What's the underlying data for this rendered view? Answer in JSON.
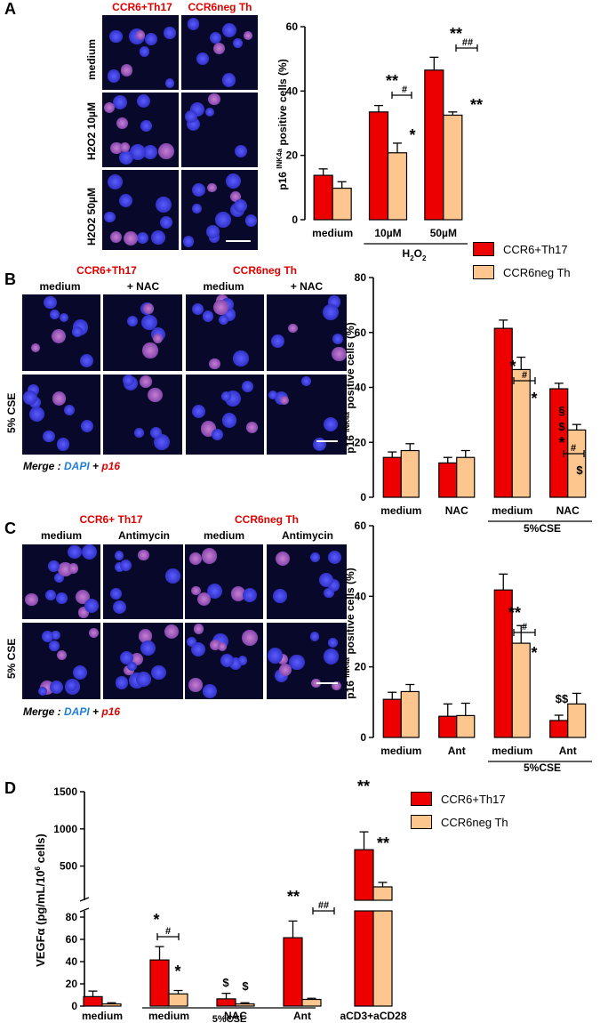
{
  "colors": {
    "red": "#ee0000",
    "tan": "#fcc68e",
    "dark": "#08082a"
  },
  "panels": {
    "A": {
      "letter": "A",
      "col1": "CCR6+Th17",
      "col2": "CCR6neg Th",
      "rows": [
        "medium",
        "H2O2 10µM",
        "H2O2 50µM"
      ]
    },
    "B": {
      "letter": "B",
      "col1": "CCR6+Th17",
      "col2": "CCR6neg Th",
      "sub": [
        "medium",
        "+ NAC",
        "medium",
        "+ NAC"
      ],
      "row": "5% CSE",
      "merge": "Merge : DAPI + p16"
    },
    "C": {
      "letter": "C",
      "col1": "CCR6+ Th17",
      "col2": "CCR6neg Th",
      "sub": [
        "medium",
        "Antimycin",
        "medium",
        "Antimycin"
      ],
      "row": "5% CSE",
      "merge": "Merge : DAPI + p16"
    },
    "D": {
      "letter": "D"
    }
  },
  "legend": {
    "s1": "CCR6+Th17",
    "s2": "CCR6neg Th"
  },
  "chart_data": [
    {
      "id": "A",
      "type": "bar",
      "ylabel": "p16 INK4a positive cells (%)",
      "ylim": [
        0,
        60
      ],
      "yticks": [
        0,
        20,
        40,
        60
      ],
      "categories": [
        "medium",
        "10µM",
        "50µM"
      ],
      "group_label": "H2O2",
      "series": [
        {
          "name": "CCR6+Th17",
          "values": [
            13.8,
            33.5,
            46.5
          ],
          "err": [
            2,
            2,
            4
          ]
        },
        {
          "name": "CCR6neg Th",
          "values": [
            9.8,
            20.8,
            32.5
          ],
          "err": [
            2,
            3,
            1
          ]
        }
      ],
      "annotations": [
        "**",
        "#",
        "*",
        "**",
        "##",
        "**"
      ]
    },
    {
      "id": "B",
      "type": "bar",
      "ylabel": "p16 INK4a positive cells (%)",
      "ylim": [
        0,
        80
      ],
      "yticks": [
        0,
        20,
        40,
        60,
        80
      ],
      "categories": [
        "medium",
        "NAC",
        "medium",
        "NAC"
      ],
      "group_label": "5%CSE",
      "series": [
        {
          "name": "CCR6+Th17",
          "values": [
            14.5,
            12.5,
            61.5,
            39.5
          ],
          "err": [
            2,
            2,
            3,
            2
          ]
        },
        {
          "name": "CCR6neg Th",
          "values": [
            17,
            14.5,
            46.5,
            24.5
          ],
          "err": [
            2.5,
            2.5,
            4.5,
            2
          ]
        }
      ],
      "annotations": [
        "*",
        "#",
        "*",
        "§",
        "$",
        "*",
        "#",
        "$"
      ]
    },
    {
      "id": "C",
      "type": "bar",
      "ylabel": "p16 INK4a positive cells (%)",
      "ylim": [
        0,
        60
      ],
      "yticks": [
        0,
        20,
        40,
        60
      ],
      "categories": [
        "medium",
        "Ant",
        "medium",
        "Ant"
      ],
      "group_label": "5%CSE",
      "series": [
        {
          "name": "CCR6+Th17",
          "values": [
            10.8,
            6,
            41.8,
            4.8
          ],
          "err": [
            2,
            3.5,
            4.5,
            1.5
          ]
        },
        {
          "name": "CCR6neg Th",
          "values": [
            13,
            6.2,
            26.7,
            9.5
          ],
          "err": [
            2,
            3.5,
            5,
            3
          ]
        }
      ],
      "annotations": [
        "**",
        "#",
        "*",
        "$$"
      ]
    },
    {
      "id": "D",
      "type": "bar",
      "ylabel": "VEGFα (pg/mL/10^6 cells)",
      "ylim": [
        0,
        1500
      ],
      "axis_break": [
        80,
        100
      ],
      "yticks_low": [
        0,
        20,
        40,
        60,
        80
      ],
      "yticks_high": [
        500,
        1000,
        1500
      ],
      "categories": [
        "medium",
        "medium",
        "NAC",
        "Ant",
        "aCD3+aCD28"
      ],
      "group_label": "5%CSE",
      "series": [
        {
          "name": "CCR6+Th17",
          "values": [
            8.5,
            41.5,
            6.5,
            61.5,
            720
          ],
          "err": [
            5,
            12,
            5,
            15,
            240
          ]
        },
        {
          "name": "CCR6neg Th",
          "values": [
            2,
            11,
            2,
            6,
            220
          ],
          "err": [
            1,
            3,
            1,
            1,
            60
          ]
        }
      ],
      "annotations": [
        "*",
        "#",
        "*",
        "$",
        "$",
        "**",
        "##",
        "**",
        "**"
      ]
    }
  ]
}
